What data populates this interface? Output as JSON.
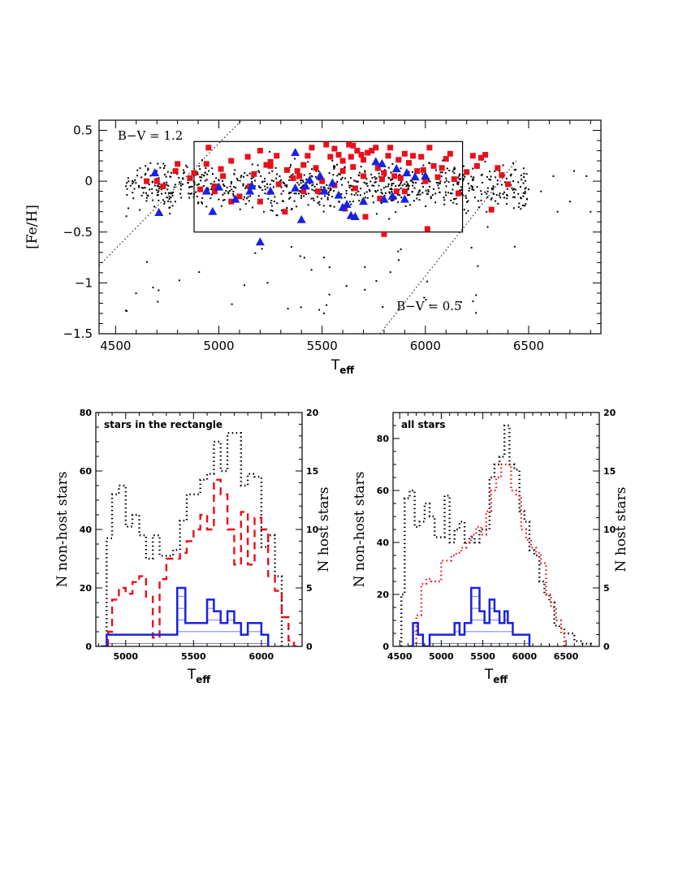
{
  "colors": {
    "field": "#000000",
    "non_host": "#e8101a",
    "host": "#1a22e0"
  },
  "chart_data": [
    {
      "type": "scatter",
      "ylabel": "[Fe/H]",
      "xlabel_main": "T",
      "xlabel_sub": "eff",
      "xlim": [
        4420,
        6850
      ],
      "ylim": [
        -1.5,
        0.6
      ],
      "xticks": [
        4500,
        5000,
        5500,
        6000,
        6500
      ],
      "yticks": [
        0.5,
        0,
        -0.5,
        -1,
        -1.5
      ],
      "ytick_labels": [
        "0.5",
        "0",
        "−0.5",
        "−1",
        "−1.5"
      ],
      "rectangle": {
        "x": [
          4880,
          6180
        ],
        "y": [
          -0.5,
          0.39
        ]
      },
      "annotations": [
        {
          "text": "B−V = 1.2",
          "x": 4510,
          "y": 0.41
        },
        {
          "text": "B−V = 0.5",
          "x": 5860,
          "y": -1.27
        }
      ],
      "iso_lines": [
        {
          "name": "B-V = 1.2",
          "points": [
            [
              4420,
              -0.83
            ],
            [
              5110,
              0.6
            ]
          ]
        },
        {
          "name": "B-V = 0.5",
          "points": [
            [
              5780,
              -1.5
            ],
            [
              6440,
              0.2
            ]
          ]
        }
      ],
      "non_host_points": [
        [
          4650,
          0.0
        ],
        [
          4700,
          0.0
        ],
        [
          4730,
          -0.05
        ],
        [
          4790,
          0.1
        ],
        [
          4800,
          0.17
        ],
        [
          4860,
          0.03
        ],
        [
          4880,
          0.08
        ],
        [
          4910,
          -0.08
        ],
        [
          4940,
          0.17
        ],
        [
          4950,
          0.33
        ],
        [
          4980,
          -0.1
        ],
        [
          5010,
          0.12
        ],
        [
          5060,
          -0.2
        ],
        [
          5100,
          -0.15
        ],
        [
          5140,
          0.24
        ],
        [
          5170,
          0.07
        ],
        [
          5200,
          -0.2
        ],
        [
          5230,
          0.16
        ],
        [
          5250,
          0.19
        ],
        [
          5280,
          0.25
        ],
        [
          5330,
          0.11
        ],
        [
          5360,
          0.03
        ],
        [
          5390,
          0.05
        ],
        [
          5410,
          0.16
        ],
        [
          5430,
          0.25
        ],
        [
          5450,
          0.33
        ],
        [
          5480,
          -0.1
        ],
        [
          5500,
          0.0
        ],
        [
          5520,
          0.36
        ],
        [
          5540,
          0.24
        ],
        [
          5560,
          0.32
        ],
        [
          5580,
          0.26
        ],
        [
          5600,
          0.2
        ],
        [
          5610,
          -0.27
        ],
        [
          5630,
          0.36
        ],
        [
          5640,
          0.24
        ],
        [
          5650,
          0.14
        ],
        [
          5670,
          0.3
        ],
        [
          5690,
          0.26
        ],
        [
          5700,
          0.05
        ],
        [
          5720,
          0.28
        ],
        [
          5740,
          0.3
        ],
        [
          5760,
          0.33
        ],
        [
          5770,
          0.13
        ],
        [
          5780,
          -0.17
        ],
        [
          5790,
          0.02
        ],
        [
          5800,
          0.08
        ],
        [
          5820,
          0.25
        ],
        [
          5830,
          0.33
        ],
        [
          5850,
          0.05
        ],
        [
          5860,
          -0.1
        ],
        [
          5870,
          0.21
        ],
        [
          5880,
          0.03
        ],
        [
          5900,
          -0.1
        ],
        [
          5920,
          0.18
        ],
        [
          5940,
          0.25
        ],
        [
          5960,
          0.1
        ],
        [
          5980,
          0.24
        ],
        [
          6000,
          0.0
        ],
        [
          6010,
          -0.47
        ],
        [
          6020,
          0.33
        ],
        [
          6040,
          0.15
        ],
        [
          6060,
          0.04
        ],
        [
          6080,
          0.13
        ],
        [
          6100,
          0.22
        ],
        [
          6120,
          0.27
        ],
        [
          6140,
          0.02
        ],
        [
          6160,
          -0.12
        ],
        [
          6200,
          0.09
        ],
        [
          6230,
          0.25
        ],
        [
          6250,
          0.15
        ],
        [
          6270,
          0.23
        ],
        [
          6290,
          0.26
        ],
        [
          6320,
          -0.28
        ],
        [
          6350,
          0.13
        ],
        [
          6370,
          0.06
        ],
        [
          6400,
          -0.03
        ],
        [
          5380,
          0.1
        ],
        [
          5290,
          -0.03
        ],
        [
          5150,
          -0.05
        ],
        [
          5020,
          0.05
        ],
        [
          5470,
          0.13
        ],
        [
          5560,
          -0.04
        ],
        [
          5700,
          0.21
        ],
        [
          5900,
          0.27
        ],
        [
          5990,
          0.11
        ],
        [
          5250,
          0.15
        ],
        [
          5320,
          -0.3
        ],
        [
          5410,
          -0.1
        ],
        [
          5660,
          -0.07
        ],
        [
          5710,
          -0.35
        ],
        [
          5800,
          -0.52
        ],
        [
          5200,
          0.3
        ],
        [
          5060,
          0.2
        ],
        [
          4980,
          -0.05
        ],
        [
          5600,
          0.1
        ],
        [
          5650,
          0.35
        ]
      ],
      "host_points": [
        [
          4690,
          0.08
        ],
        [
          4710,
          -0.31
        ],
        [
          4940,
          -0.1
        ],
        [
          4970,
          -0.3
        ],
        [
          5000,
          -0.06
        ],
        [
          5080,
          -0.18
        ],
        [
          5150,
          -0.1
        ],
        [
          5160,
          -0.05
        ],
        [
          5200,
          -0.6
        ],
        [
          5250,
          -0.1
        ],
        [
          5370,
          0.28
        ],
        [
          5370,
          -0.07
        ],
        [
          5400,
          -0.38
        ],
        [
          5420,
          -0.05
        ],
        [
          5440,
          0.01
        ],
        [
          5490,
          0.05
        ],
        [
          5510,
          -0.1
        ],
        [
          5550,
          -0.02
        ],
        [
          5580,
          -0.14
        ],
        [
          5600,
          -0.26
        ],
        [
          5620,
          -0.23
        ],
        [
          5640,
          -0.34
        ],
        [
          5660,
          -0.35
        ],
        [
          5700,
          -0.2
        ],
        [
          5760,
          0.19
        ],
        [
          5790,
          0.17
        ],
        [
          5800,
          -0.18
        ],
        [
          5840,
          -0.15
        ],
        [
          5860,
          0.12
        ],
        [
          5900,
          -0.18
        ],
        [
          5910,
          0.08
        ],
        [
          5950,
          0.04
        ],
        [
          6000,
          0.05
        ]
      ]
    },
    {
      "type": "histogram",
      "label": "stars in the rectangle",
      "xlabel_main": "T",
      "xlabel_sub": "eff",
      "ylabel_left": "N non-host stars",
      "ylabel_right": "N host stars",
      "xlim": [
        4780,
        6300
      ],
      "ylim_left": [
        0,
        80
      ],
      "ylim_right": [
        0,
        20
      ],
      "xticks": [
        5000,
        5500,
        6000
      ],
      "yticks_left": [
        0,
        20,
        40,
        60,
        80
      ],
      "yticks_right": [
        0,
        5,
        10,
        15,
        20
      ],
      "series": [
        {
          "style": "all-stars-dotted",
          "color": "#000000",
          "edges": [
            4820,
            4860,
            4900,
            4950,
            5000,
            5050,
            5100,
            5150,
            5200,
            5250,
            5300,
            5350,
            5400,
            5450,
            5500,
            5550,
            5600,
            5650,
            5700,
            5750,
            5800,
            5850,
            5900,
            5950,
            6000,
            6050,
            6100,
            6150
          ],
          "counts": [
            0,
            37,
            52,
            55,
            41,
            45,
            38,
            30,
            38,
            31,
            31,
            33,
            43,
            52,
            52,
            57,
            59,
            70,
            60,
            73,
            73,
            55,
            59,
            58,
            34,
            38,
            24
          ]
        },
        {
          "style": "non-host-dashed",
          "color": "#e8101a",
          "edges": [
            4870,
            4900,
            4950,
            5000,
            5050,
            5100,
            5150,
            5200,
            5250,
            5300,
            5350,
            5400,
            5450,
            5500,
            5550,
            5600,
            5650,
            5700,
            5750,
            5800,
            5850,
            5900,
            5950,
            6000,
            6050,
            6100,
            6150,
            6200,
            6240,
            6260
          ],
          "counts": [
            5,
            16,
            20,
            18,
            22,
            24,
            17,
            3,
            23,
            30,
            30,
            32,
            36,
            40,
            45,
            40,
            57,
            52,
            40,
            28,
            46,
            28,
            44,
            40,
            24,
            19,
            10,
            2,
            0
          ]
        },
        {
          "style": "host-solid",
          "color": "#1a22e0",
          "edges": [
            4830,
            4860,
            4900,
            5000,
            5100,
            5200,
            5300,
            5380,
            5410,
            5440,
            5470,
            5500,
            5550,
            5600,
            5650,
            5700,
            5750,
            5800,
            5850,
            5900,
            6000,
            6050
          ],
          "counts": [
            0,
            1,
            1,
            1,
            1,
            1,
            1,
            5,
            5,
            2,
            2,
            2,
            2,
            4,
            3,
            2,
            3,
            2,
            1,
            2,
            1
          ]
        }
      ]
    },
    {
      "type": "histogram",
      "label": "all stars",
      "xlabel_main": "T",
      "xlabel_sub": "eff",
      "ylabel_left": "N non-host stars",
      "ylabel_right": "N host stars",
      "xlim": [
        4420,
        6900
      ],
      "ylim_left": [
        0,
        90
      ],
      "ylim_right": [
        0,
        20
      ],
      "xticks": [
        4500,
        5000,
        5500,
        6000,
        6500
      ],
      "yticks_left": [
        0,
        20,
        40,
        60,
        80
      ],
      "yticks_right": [
        0,
        5,
        10,
        15,
        20
      ],
      "series": [
        {
          "style": "all-stars-dotted",
          "color": "#000000",
          "edges": [
            4520,
            4560,
            4620,
            4680,
            4740,
            4800,
            4860,
            4920,
            4980,
            5040,
            5100,
            5160,
            5220,
            5280,
            5340,
            5400,
            5460,
            5520,
            5580,
            5640,
            5700,
            5760,
            5820,
            5880,
            5940,
            6000,
            6060,
            6120,
            6180,
            6240,
            6300,
            6360,
            6420,
            6480,
            6540,
            6600,
            6700,
            6800
          ],
          "counts": [
            20,
            57,
            60,
            46,
            48,
            55,
            50,
            42,
            42,
            58,
            40,
            45,
            48,
            40,
            42,
            40,
            45,
            45,
            65,
            70,
            73,
            85,
            70,
            68,
            52,
            48,
            37,
            35,
            25,
            20,
            17,
            8,
            7,
            5,
            5,
            2,
            1
          ]
        },
        {
          "style": "non-host-dotted",
          "color": "#e8101a",
          "edges": [
            4640,
            4700,
            4760,
            4820,
            4880,
            4940,
            5000,
            5060,
            5120,
            5180,
            5240,
            5300,
            5360,
            5420,
            5480,
            5540,
            5600,
            5660,
            5720,
            5780,
            5840,
            5900,
            5960,
            6020,
            6080,
            6140,
            6200,
            6260,
            6320,
            6380,
            6440,
            6480
          ],
          "counts": [
            1,
            12,
            24,
            26,
            25,
            25,
            33,
            33,
            35,
            36,
            38,
            40,
            43,
            46,
            43,
            52,
            60,
            65,
            70,
            70,
            60,
            58,
            45,
            41,
            38,
            36,
            32,
            20,
            15,
            10,
            5
          ]
        },
        {
          "style": "host-solid",
          "color": "#1a22e0",
          "edges": [
            4600,
            4660,
            4720,
            4780,
            4860,
            5000,
            5160,
            5220,
            5280,
            5360,
            5400,
            5460,
            5520,
            5580,
            5640,
            5700,
            5760,
            5800,
            5860,
            5920,
            6000,
            6060
          ],
          "counts": [
            0,
            2,
            1,
            0,
            1,
            1,
            2,
            1,
            2,
            5,
            5,
            3,
            2,
            4,
            3,
            2,
            3,
            2,
            1,
            1,
            1
          ]
        }
      ]
    }
  ]
}
